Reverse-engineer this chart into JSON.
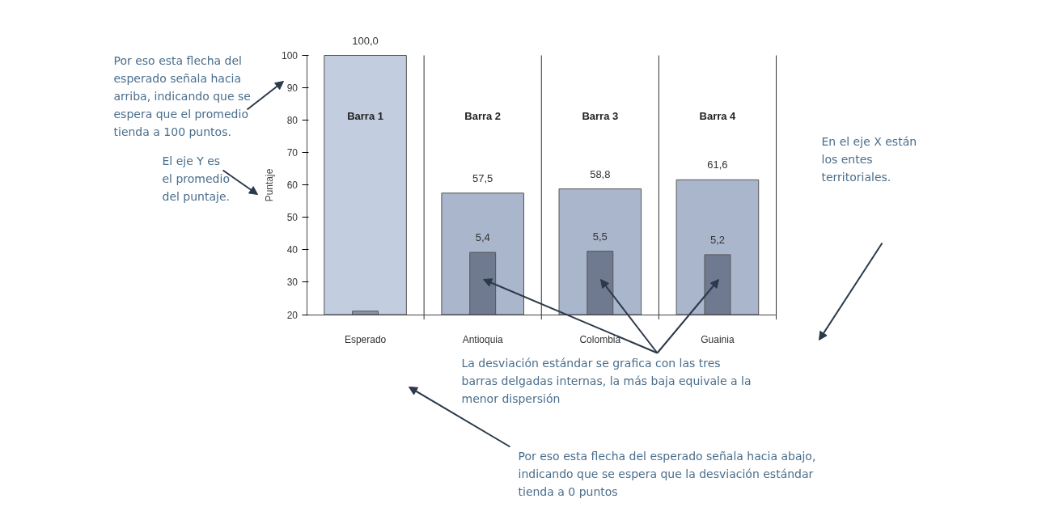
{
  "chart_data": {
    "type": "bar",
    "ylabel": "Puntaje",
    "categories": [
      "Esperado",
      "Antioquia",
      "Colombia",
      "Guainia"
    ],
    "ylim": [
      20,
      100
    ],
    "yticks": [
      20,
      30,
      40,
      50,
      60,
      70,
      80,
      90,
      100
    ],
    "y2lim": [
      0,
      22.5
    ],
    "grid": "x",
    "series": [
      {
        "colors": [
          "#c3cde0",
          "#a9b6cc",
          "#a9b6cc",
          "#a9b6cc"
        ],
        "values": [
          100,
          57.5,
          58.8,
          61.6
        ],
        "value_labels": [
          "100,0",
          "57,5",
          "58,8",
          "61,6"
        ]
      },
      {
        "axis": "y2",
        "colors": [
          "#8a94a8",
          "#6f7a90",
          "#6f7a90",
          "#6f7a90"
        ],
        "values": [
          0.3,
          5.4,
          5.5,
          5.2
        ],
        "value_labels": [
          null,
          "5,4",
          "5,5",
          "5,2"
        ]
      }
    ],
    "annotations": [
      "Por eso esta flecha del esperado señala hacia arriba, indicando que se espera que el promedio tienda a 100 puntos.",
      "El eje Y es el promedio del puntaje.",
      "En el eje X están los entes territoriales.",
      "La desviación estándar se grafica con las tres barras delgadas internas, la más baja equivale a la menor dispersión",
      "Por eso esta flecha del esperado señala hacia abajo, indicando que se espera que la desviación estándar tienda a 0 puntos",
      "Barra 1",
      "Barra 2",
      "Barra 3",
      "Barra 4"
    ]
  }
}
